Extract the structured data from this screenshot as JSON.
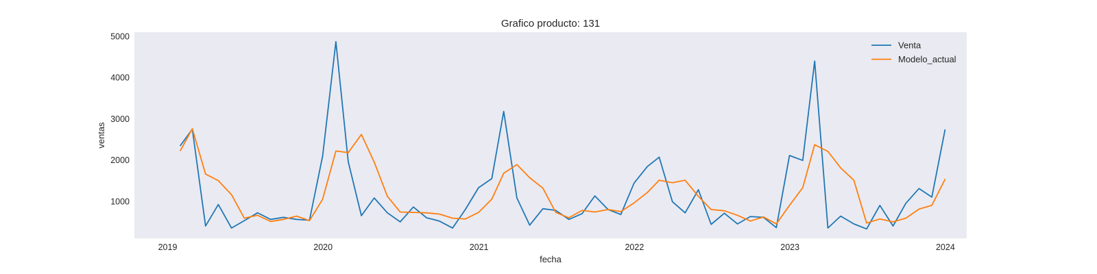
{
  "chart_data": {
    "type": "line",
    "title": "Grafico producto: 131",
    "xlabel": "fecha",
    "ylabel": "ventas",
    "x_range": [
      "2018-10-15",
      "2024-02-20"
    ],
    "ylim": [
      100,
      5100
    ],
    "grid": false,
    "legend_position": "top-right",
    "x_ticks": [
      {
        "date": "2019-01-01",
        "label": "2019"
      },
      {
        "date": "2020-01-01",
        "label": "2020"
      },
      {
        "date": "2021-01-01",
        "label": "2021"
      },
      {
        "date": "2022-01-01",
        "label": "2022"
      },
      {
        "date": "2023-01-01",
        "label": "2023"
      },
      {
        "date": "2024-01-01",
        "label": "2024"
      }
    ],
    "y_ticks": [
      1000,
      2000,
      3000,
      4000,
      5000
    ],
    "x": [
      "2019-01-31",
      "2019-02-28",
      "2019-03-31",
      "2019-04-30",
      "2019-05-31",
      "2019-06-30",
      "2019-07-31",
      "2019-08-31",
      "2019-09-30",
      "2019-10-31",
      "2019-11-30",
      "2019-12-31",
      "2020-01-31",
      "2020-02-29",
      "2020-03-31",
      "2020-04-30",
      "2020-05-31",
      "2020-06-30",
      "2020-07-31",
      "2020-08-31",
      "2020-09-30",
      "2020-10-31",
      "2020-11-30",
      "2020-12-31",
      "2021-01-31",
      "2021-02-28",
      "2021-03-31",
      "2021-04-30",
      "2021-05-31",
      "2021-06-30",
      "2021-07-31",
      "2021-08-31",
      "2021-09-30",
      "2021-10-31",
      "2021-11-30",
      "2021-12-31",
      "2022-01-31",
      "2022-02-28",
      "2022-03-31",
      "2022-04-30",
      "2022-05-31",
      "2022-06-30",
      "2022-07-31",
      "2022-08-31",
      "2022-09-30",
      "2022-10-31",
      "2022-11-30",
      "2022-12-31",
      "2023-01-31",
      "2023-02-28",
      "2023-03-31",
      "2023-04-30",
      "2023-05-31",
      "2023-06-30",
      "2023-07-31",
      "2023-08-31",
      "2023-09-30",
      "2023-10-31",
      "2023-11-30",
      "2023-12-31"
    ],
    "series": [
      {
        "name": "Venta",
        "color": "#1f77b4",
        "values": [
          2350,
          2750,
          400,
          920,
          350,
          530,
          720,
          560,
          610,
          560,
          540,
          2100,
          4870,
          1960,
          650,
          1080,
          720,
          500,
          860,
          600,
          520,
          350,
          800,
          1330,
          1550,
          3180,
          1080,
          420,
          820,
          780,
          560,
          700,
          1130,
          800,
          680,
          1440,
          1840,
          2070,
          990,
          720,
          1280,
          440,
          710,
          450,
          630,
          610,
          360,
          2110,
          1990,
          4400,
          350,
          640,
          450,
          330,
          900,
          400,
          950,
          1310,
          1100,
          2730
        ]
      },
      {
        "name": "Modelo_actual",
        "color": "#ff7f0e",
        "values": [
          2230,
          2760,
          1660,
          1500,
          1160,
          590,
          660,
          510,
          560,
          640,
          530,
          1050,
          2220,
          2180,
          2620,
          1950,
          1120,
          740,
          730,
          720,
          690,
          590,
          570,
          730,
          1050,
          1680,
          1890,
          1570,
          1320,
          730,
          600,
          780,
          740,
          800,
          750,
          960,
          1210,
          1510,
          1450,
          1510,
          1120,
          800,
          770,
          660,
          520,
          620,
          450,
          900,
          1330,
          2370,
          2210,
          1810,
          1510,
          470,
          570,
          500,
          590,
          810,
          900,
          1530
        ]
      }
    ]
  }
}
